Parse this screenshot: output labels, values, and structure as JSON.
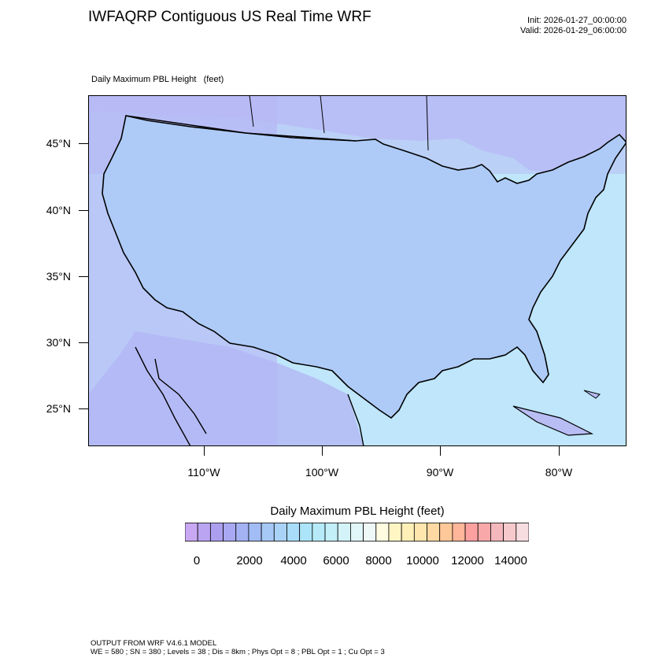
{
  "header": {
    "title": "IWFAQRP Contiguous US Real Time WRF",
    "init": "Init: 2026-01-27_00:00:00",
    "valid": "Valid: 2026-01-29_06:00:00",
    "subtitle": "Daily Maximum PBL Height   (feet)"
  },
  "map": {
    "lat_labels": [
      "45°N",
      "40°N",
      "35°N",
      "30°N",
      "25°N"
    ],
    "lon_labels": [
      "110°W",
      "100°W",
      "90°W",
      "80°W"
    ],
    "colors": {
      "land_low": "#b9a3f5",
      "land_mid": "#a9c8f7",
      "ocean": "#bfe6fb",
      "boundaries": "#000000"
    }
  },
  "colorbar": {
    "title": "Daily Maximum PBL Height  (feet)",
    "labels": [
      "0",
      "2000",
      "4000",
      "6000",
      "8000",
      "10000",
      "12000",
      "14000"
    ],
    "colors": [
      "#c8a8f2",
      "#bba4f1",
      "#ad9ff0",
      "#a8a8f3",
      "#a4b2f4",
      "#a2bcf5",
      "#a6c8f6",
      "#aad2f7",
      "#a9dcf8",
      "#ace4f9",
      "#b6eaf9",
      "#c3eff9",
      "#d3f3f9",
      "#e1f6f8",
      "#eef9f7",
      "#fffbe0",
      "#fff6c4",
      "#fff0b8",
      "#ffe6ae",
      "#ffd9a3",
      "#ffc898",
      "#ffb69a",
      "#fca0a0",
      "#f8a8a8",
      "#f4b8bc",
      "#f6cacd",
      "#f8dde0"
    ]
  },
  "footer": {
    "line1": "OUTPUT FROM WRF V4.6.1 MODEL",
    "line2": "WE = 580 ; SN = 380 ; Levels = 38 ; Dis = 8km ; Phys Opt = 8 ; PBL Opt = 1 ; Cu Opt = 3"
  }
}
